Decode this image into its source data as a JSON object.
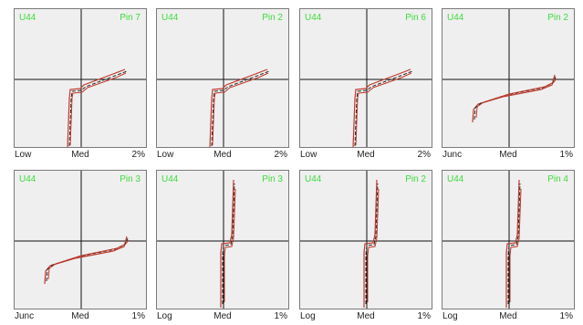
{
  "panels": [
    {
      "chip": "U44",
      "pin": "Pin 7",
      "left": "Low",
      "mid": "Med",
      "right": "2%",
      "curve": "low"
    },
    {
      "chip": "U44",
      "pin": "Pin 2",
      "left": "Low",
      "mid": "Med",
      "right": "2%",
      "curve": "low"
    },
    {
      "chip": "U44",
      "pin": "Pin 6",
      "left": "Low",
      "mid": "Med",
      "right": "2%",
      "curve": "low"
    },
    {
      "chip": "U44",
      "pin": "Pin 2",
      "left": "Junc",
      "mid": "Med",
      "right": "1%",
      "curve": "junc"
    },
    {
      "chip": "U44",
      "pin": "Pin 3",
      "left": "Junc",
      "mid": "Med",
      "right": "1%",
      "curve": "junc"
    },
    {
      "chip": "U44",
      "pin": "Pin 3",
      "left": "Log",
      "mid": "Med",
      "right": "1%",
      "curve": "log"
    },
    {
      "chip": "U44",
      "pin": "Pin 2",
      "left": "Log",
      "mid": "Med",
      "right": "1%",
      "curve": "log"
    },
    {
      "chip": "U44",
      "pin": "Pin 4",
      "left": "Log",
      "mid": "Med",
      "right": "1%",
      "curve": "log"
    }
  ],
  "colors": {
    "label_green": "#3ddc3d",
    "trace_red": "#c0392b",
    "trace_dark": "#2a2a2a",
    "panel_bg": "#efefef",
    "axis": "#111111"
  }
}
